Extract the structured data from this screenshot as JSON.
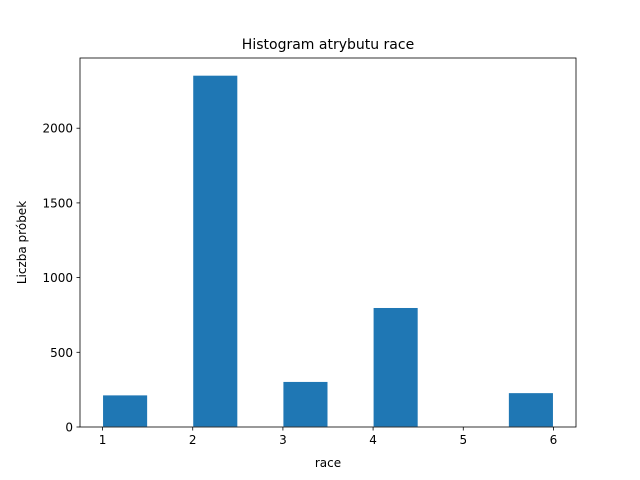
{
  "chart_data": {
    "type": "bar",
    "title": "Histogram atrybutu race",
    "xlabel": "race",
    "ylabel": "Liczba próbek",
    "xlim": [
      0.75,
      6.25
    ],
    "ylim": [
      0,
      2470
    ],
    "bar_color": "#1f77b4",
    "edge_color": "#ffffff",
    "grid": false,
    "bins": [
      {
        "x0": 1.0,
        "x1": 1.5,
        "value": 215
      },
      {
        "x0": 1.5,
        "x1": 2.0,
        "value": 0
      },
      {
        "x0": 2.0,
        "x1": 2.5,
        "value": 2355
      },
      {
        "x0": 2.5,
        "x1": 3.0,
        "value": 0
      },
      {
        "x0": 3.0,
        "x1": 3.5,
        "value": 305
      },
      {
        "x0": 3.5,
        "x1": 4.0,
        "value": 0
      },
      {
        "x0": 4.0,
        "x1": 4.5,
        "value": 800
      },
      {
        "x0": 4.5,
        "x1": 5.0,
        "value": 0
      },
      {
        "x0": 5.0,
        "x1": 5.5,
        "value": 0
      },
      {
        "x0": 5.5,
        "x1": 6.0,
        "value": 230
      }
    ],
    "xticks": [
      1,
      2,
      3,
      4,
      5,
      6
    ],
    "xtick_labels": [
      "1",
      "2",
      "3",
      "4",
      "5",
      "6"
    ],
    "yticks": [
      0,
      500,
      1000,
      1500,
      2000
    ],
    "ytick_labels": [
      "0",
      "500",
      "1000",
      "1500",
      "2000"
    ]
  }
}
